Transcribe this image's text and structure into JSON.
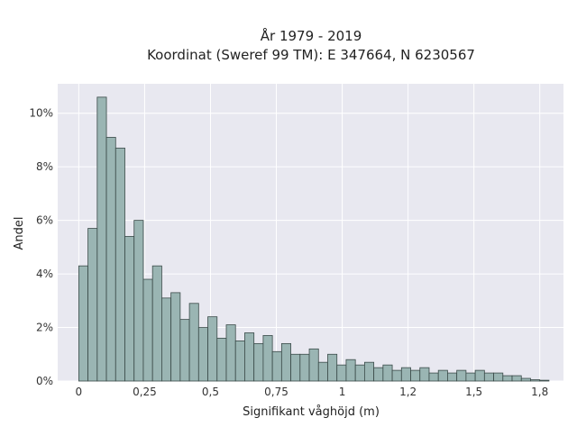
{
  "chart_data": {
    "type": "bar",
    "title": "År 1979 - 2019",
    "subtitle": "Koordinat (Sweref 99 TM): E 347664, N 6230567",
    "xlabel": "Signifikant våghöjd (m)",
    "ylabel": "Andel",
    "xlim": [
      -0.08,
      1.84
    ],
    "ylim": [
      0,
      0.111
    ],
    "bin_width": 0.035,
    "x_ticks": [
      {
        "value": 0,
        "label": "0"
      },
      {
        "value": 0.25,
        "label": "0,25"
      },
      {
        "value": 0.5,
        "label": "0,5"
      },
      {
        "value": 0.75,
        "label": "0,75"
      },
      {
        "value": 1.0,
        "label": "1"
      },
      {
        "value": 1.25,
        "label": "1,2"
      },
      {
        "value": 1.5,
        "label": "1,5"
      },
      {
        "value": 1.75,
        "label": "1,8"
      }
    ],
    "y_ticks": [
      {
        "value": 0,
        "label": "0%"
      },
      {
        "value": 0.02,
        "label": "2%"
      },
      {
        "value": 0.04,
        "label": "4%"
      },
      {
        "value": 0.06,
        "label": "6%"
      },
      {
        "value": 0.08,
        "label": "8%"
      },
      {
        "value": 0.1,
        "label": "10%"
      }
    ],
    "bin_starts": [
      0,
      0.035,
      0.07,
      0.105,
      0.14,
      0.175,
      0.21,
      0.245,
      0.28,
      0.315,
      0.35,
      0.385,
      0.42,
      0.455,
      0.49,
      0.525,
      0.56,
      0.595,
      0.63,
      0.665,
      0.7,
      0.735,
      0.77,
      0.805,
      0.84,
      0.875,
      0.91,
      0.945,
      0.98,
      1.015,
      1.05,
      1.085,
      1.12,
      1.155,
      1.19,
      1.225,
      1.26,
      1.295,
      1.33,
      1.365,
      1.4,
      1.435,
      1.47,
      1.505,
      1.54,
      1.575,
      1.61,
      1.645,
      1.68,
      1.715,
      1.75
    ],
    "values": [
      0.043,
      0.057,
      0.106,
      0.091,
      0.087,
      0.054,
      0.06,
      0.038,
      0.043,
      0.031,
      0.033,
      0.023,
      0.029,
      0.02,
      0.024,
      0.016,
      0.021,
      0.015,
      0.018,
      0.014,
      0.017,
      0.011,
      0.014,
      0.01,
      0.01,
      0.012,
      0.007,
      0.01,
      0.006,
      0.008,
      0.006,
      0.007,
      0.005,
      0.006,
      0.004,
      0.005,
      0.004,
      0.005,
      0.003,
      0.004,
      0.003,
      0.004,
      0.003,
      0.004,
      0.003,
      0.003,
      0.002,
      0.002,
      0.001,
      0.0005,
      0.0003
    ],
    "grid": true,
    "legend": false,
    "colors": {
      "bar_fill": "#9ab5b3",
      "bar_edge": "#3a4a48",
      "plot_bg": "#e8e8f0",
      "grid": "#ffffff"
    }
  }
}
